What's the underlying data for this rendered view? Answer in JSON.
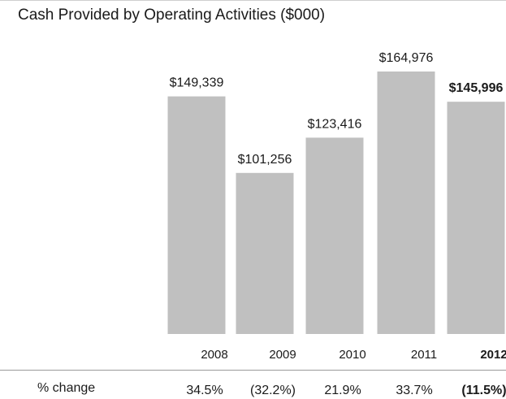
{
  "chart_data": {
    "type": "bar",
    "title": "Cash Provided by Operating Activities ($000)",
    "categories": [
      "2008",
      "2009",
      "2010",
      "2011",
      "2012"
    ],
    "values": [
      149339,
      101256,
      123416,
      164976,
      145996
    ],
    "value_labels": [
      "$149,339",
      "$101,256",
      "$123,416",
      "$164,976",
      "$145,996"
    ],
    "highlight_index": 4,
    "bar_color": "#c0c0c0",
    "ylim": [
      0,
      164976
    ],
    "grid": false,
    "legend": "none",
    "pct_change_label": "% change",
    "pct_change": [
      "34.5%",
      "(32.2%)",
      "21.9%",
      "33.7%",
      "(11.5%)"
    ]
  }
}
